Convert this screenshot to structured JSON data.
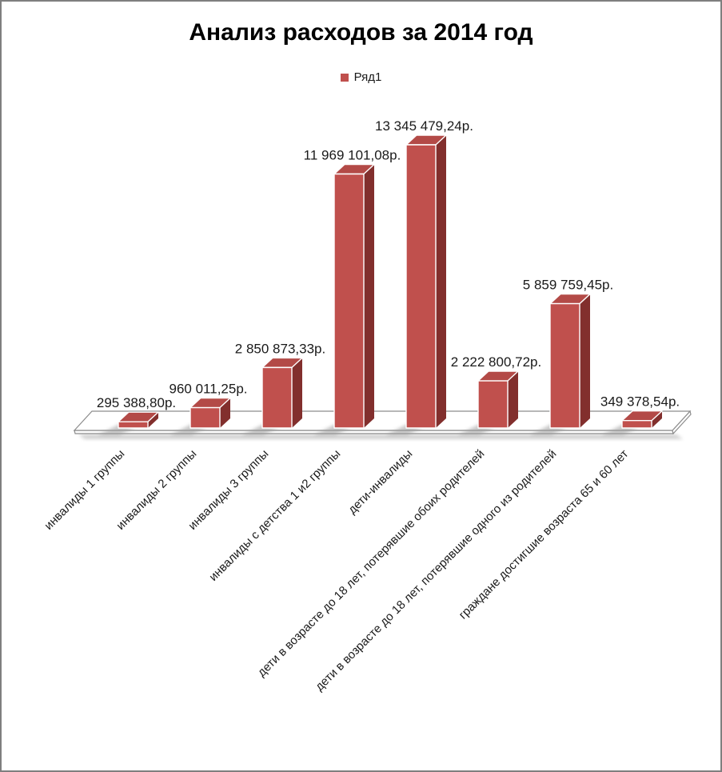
{
  "window": {
    "background": "#FFFFFF",
    "border_color": "#7F7F7F"
  },
  "chart_data": {
    "type": "bar",
    "style": "3d-clustered-column",
    "title": "Анализ расходов за 2014 год",
    "legend": {
      "position": "top-center",
      "entries": [
        {
          "label": "Ряд1",
          "color": "#C0504D"
        }
      ]
    },
    "categories": [
      "инвалиды 1 группы",
      "инвалиды 2 группы",
      "инвалиды 3 группы",
      "инвалиды с детства 1 и2 группы",
      "дети-инвалиды",
      "дети в возрасте до 18 лет, потерявшие обоих родителей",
      "дети в возрасте до 18 лет, потерявшие одного из родителей",
      "граждане достигшие возраста 65 и 60 лет"
    ],
    "series": [
      {
        "name": "Ряд1",
        "values": [
          295388.8,
          960011.25,
          2850873.33,
          11969101.08,
          13345479.24,
          2222800.72,
          5859759.45,
          349378.54
        ],
        "data_labels": [
          "295 388,80р.",
          "960 011,25р.",
          "2 850 873,33р.",
          "11 969 101,08р.",
          "13 345 479,24р.",
          "2 222 800,72р.",
          "5 859 759,45р.",
          "349 378,54р."
        ]
      }
    ],
    "value_axis": {
      "visible": false,
      "gridlines": false,
      "min": 0
    },
    "category_axis": {
      "label_rotation_deg": -45
    },
    "colors": {
      "bar_front": "#C0504D",
      "bar_top": "#B34A47",
      "bar_side": "#822F2D",
      "bar_edge": "#FFFFFF",
      "floor_fill": "#FFFFFF",
      "floor_stroke": "#8C8C8C",
      "shadow": "#9A9A9A",
      "text": "#1A1A1A"
    }
  }
}
